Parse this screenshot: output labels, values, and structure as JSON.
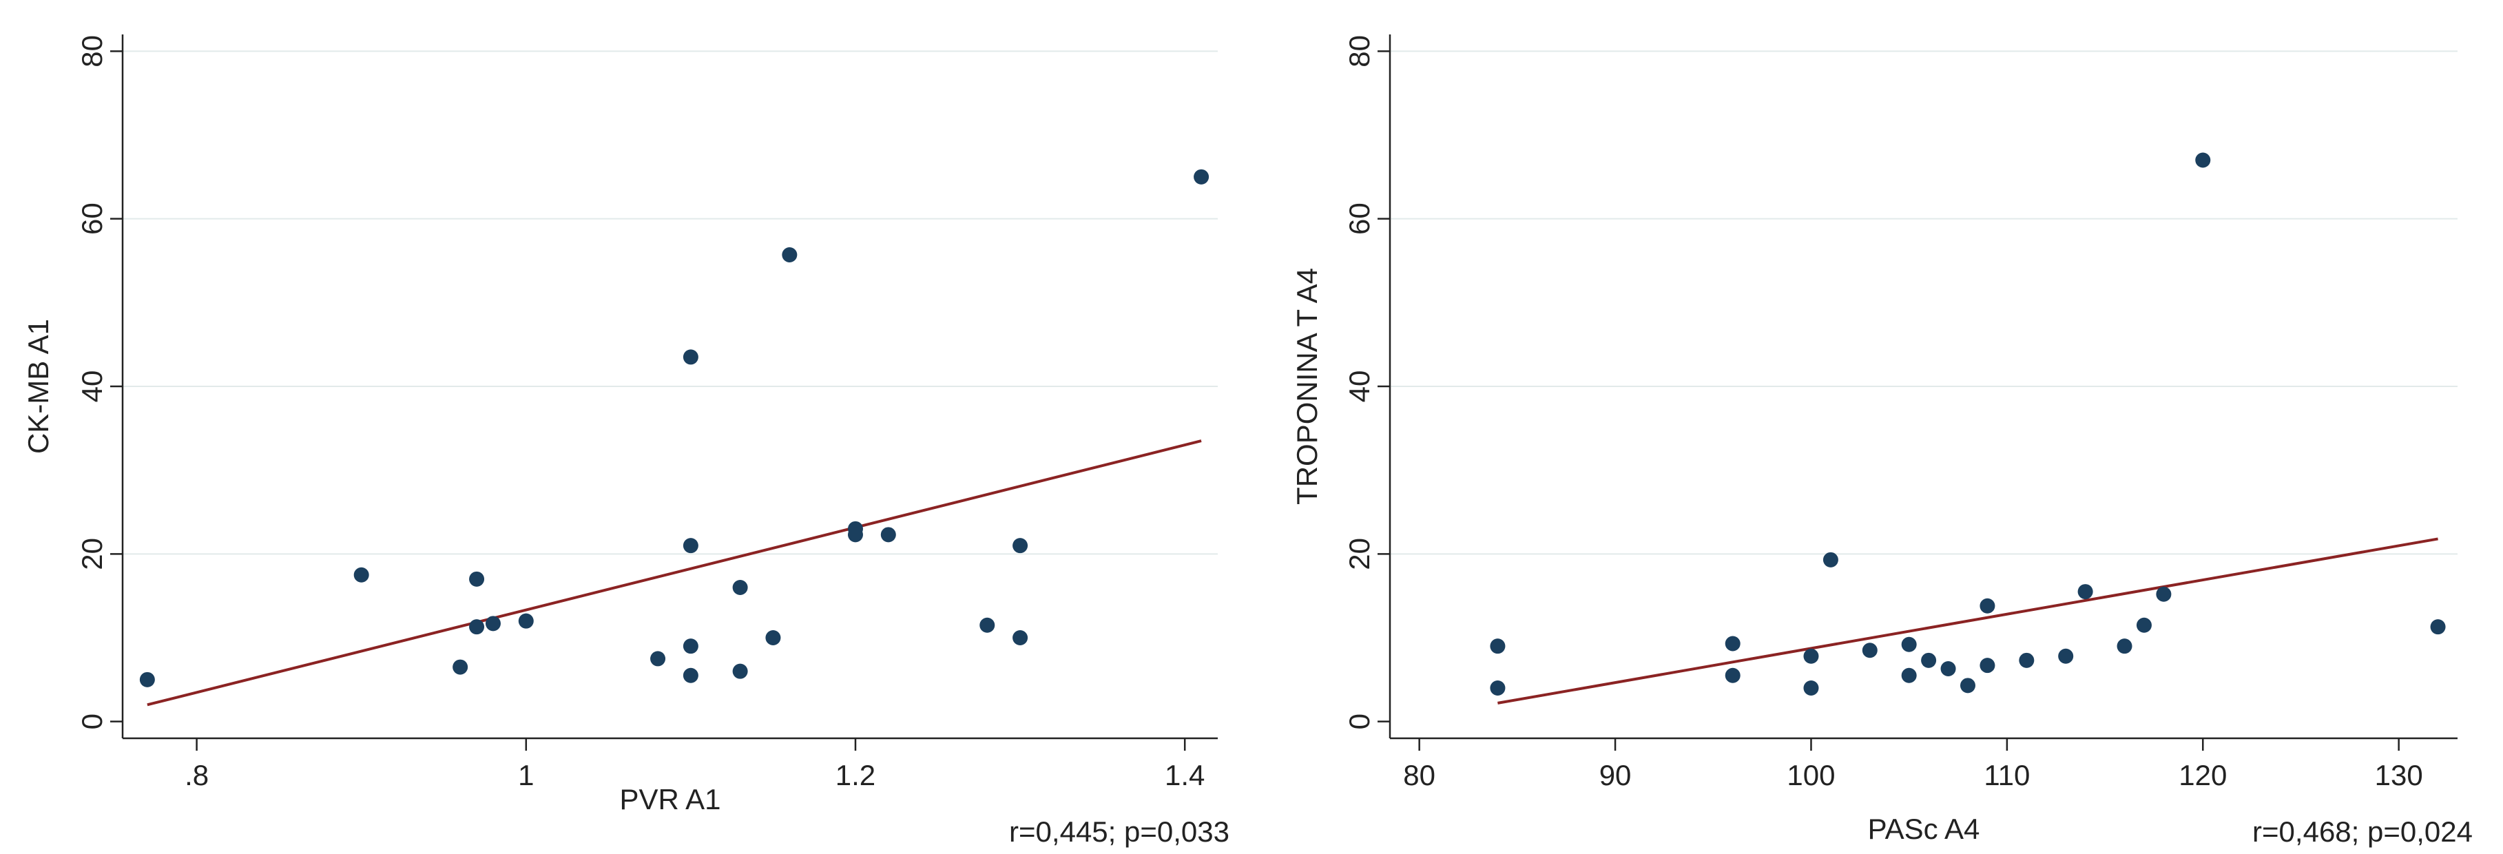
{
  "colors": {
    "background": "#ffffff",
    "grid": "#e2eaea",
    "axis": "#222222",
    "points": "#1b3f5e",
    "fit_line": "#8b2323"
  },
  "chart_data": [
    {
      "type": "scatter",
      "title": "",
      "xlabel": "PVR A1",
      "ylabel": "CK-MB A1",
      "annotation": "r=0,445; p=0,033",
      "xlim": [
        0.755,
        1.42
      ],
      "ylim": [
        -2,
        82
      ],
      "xticks": [
        0.8,
        1.0,
        1.2,
        1.4
      ],
      "xtick_labels": [
        ".8",
        "1",
        "1.2",
        "1.4"
      ],
      "yticks": [
        0,
        20,
        40,
        60,
        80
      ],
      "ytick_labels": [
        "0",
        "20",
        "40",
        "60",
        "80"
      ],
      "grid": "horizontal",
      "points": [
        {
          "x": 0.77,
          "y": 5.0
        },
        {
          "x": 0.9,
          "y": 17.5
        },
        {
          "x": 0.96,
          "y": 6.5
        },
        {
          "x": 0.97,
          "y": 17.0
        },
        {
          "x": 0.97,
          "y": 11.3
        },
        {
          "x": 0.98,
          "y": 11.7
        },
        {
          "x": 1.0,
          "y": 12.0
        },
        {
          "x": 1.08,
          "y": 7.5
        },
        {
          "x": 1.1,
          "y": 43.5
        },
        {
          "x": 1.1,
          "y": 21.0
        },
        {
          "x": 1.1,
          "y": 9.0
        },
        {
          "x": 1.1,
          "y": 5.5
        },
        {
          "x": 1.13,
          "y": 16.0
        },
        {
          "x": 1.13,
          "y": 6.0
        },
        {
          "x": 1.15,
          "y": 10.0
        },
        {
          "x": 1.16,
          "y": 55.7
        },
        {
          "x": 1.2,
          "y": 23.0
        },
        {
          "x": 1.2,
          "y": 22.3
        },
        {
          "x": 1.22,
          "y": 22.3
        },
        {
          "x": 1.28,
          "y": 11.5
        },
        {
          "x": 1.3,
          "y": 21.0
        },
        {
          "x": 1.3,
          "y": 10.0
        },
        {
          "x": 1.41,
          "y": 65.0
        }
      ],
      "fit_line": {
        "x": [
          0.77,
          1.41
        ],
        "y": [
          2.0,
          33.5
        ]
      }
    },
    {
      "type": "scatter",
      "title": "",
      "xlabel": "PASc A4",
      "ylabel": "TROPONINA T A4",
      "annotation": "r=0,468; p=0,024",
      "xlim": [
        78.5,
        133
      ],
      "ylim": [
        -2,
        82
      ],
      "xticks": [
        80,
        90,
        100,
        110,
        120,
        130
      ],
      "xtick_labels": [
        "80",
        "90",
        "100",
        "110",
        "120",
        "130"
      ],
      "yticks": [
        0,
        20,
        40,
        60,
        80
      ],
      "ytick_labels": [
        "0",
        "20",
        "40",
        "60",
        "80"
      ],
      "grid": "horizontal",
      "points": [
        {
          "x": 84,
          "y": 9.0
        },
        {
          "x": 84,
          "y": 4.0
        },
        {
          "x": 96,
          "y": 9.3
        },
        {
          "x": 96,
          "y": 5.5
        },
        {
          "x": 100,
          "y": 7.8
        },
        {
          "x": 100,
          "y": 4.0
        },
        {
          "x": 101,
          "y": 19.3
        },
        {
          "x": 103,
          "y": 8.5
        },
        {
          "x": 105,
          "y": 9.2
        },
        {
          "x": 105,
          "y": 5.5
        },
        {
          "x": 106,
          "y": 7.3
        },
        {
          "x": 107,
          "y": 6.3
        },
        {
          "x": 108,
          "y": 4.3
        },
        {
          "x": 109,
          "y": 13.8
        },
        {
          "x": 109,
          "y": 6.7
        },
        {
          "x": 111,
          "y": 7.3
        },
        {
          "x": 113,
          "y": 7.8
        },
        {
          "x": 114,
          "y": 15.5
        },
        {
          "x": 116,
          "y": 9.0
        },
        {
          "x": 117,
          "y": 11.5
        },
        {
          "x": 118,
          "y": 15.2
        },
        {
          "x": 120,
          "y": 67.0
        },
        {
          "x": 132,
          "y": 11.3
        }
      ],
      "fit_line": {
        "x": [
          84,
          132
        ],
        "y": [
          2.2,
          21.8
        ]
      }
    }
  ]
}
